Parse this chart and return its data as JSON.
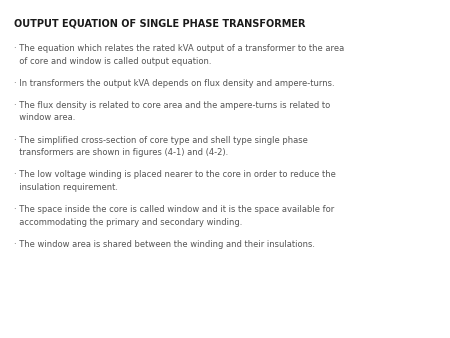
{
  "title": "OUTPUT EQUATION OF SINGLE PHASE TRANSFORMER",
  "background_color": "#ffffff",
  "title_fontsize": 7.0,
  "body_fontsize": 6.0,
  "title_color": "#1a1a1a",
  "body_color": "#555555",
  "bullets": [
    {
      "line1": "· The equation which relates the rated kVA output of a transformer to the area",
      "line2": "  of core and window is called output equation."
    },
    {
      "line1": "· In transformers the output kVA depends on flux density and ampere-turns.",
      "line2": null
    },
    {
      "line1": "· The flux density is related to core area and the ampere-turns is related to",
      "line2": "  window area."
    },
    {
      "line1": "· The simplified cross-section of core type and shell type single phase",
      "line2": "  transformers are shown in figures (4-1) and (4-2)."
    },
    {
      "line1": "· The low voltage winding is placed nearer to the core in order to reduce the",
      "line2": "  insulation requirement."
    },
    {
      "line1": "· The space inside the core is called window and it is the space available for",
      "line2": "  accommodating the primary and secondary winding."
    },
    {
      "line1": "· The window area is shared between the winding and their insulations.",
      "line2": null
    }
  ]
}
